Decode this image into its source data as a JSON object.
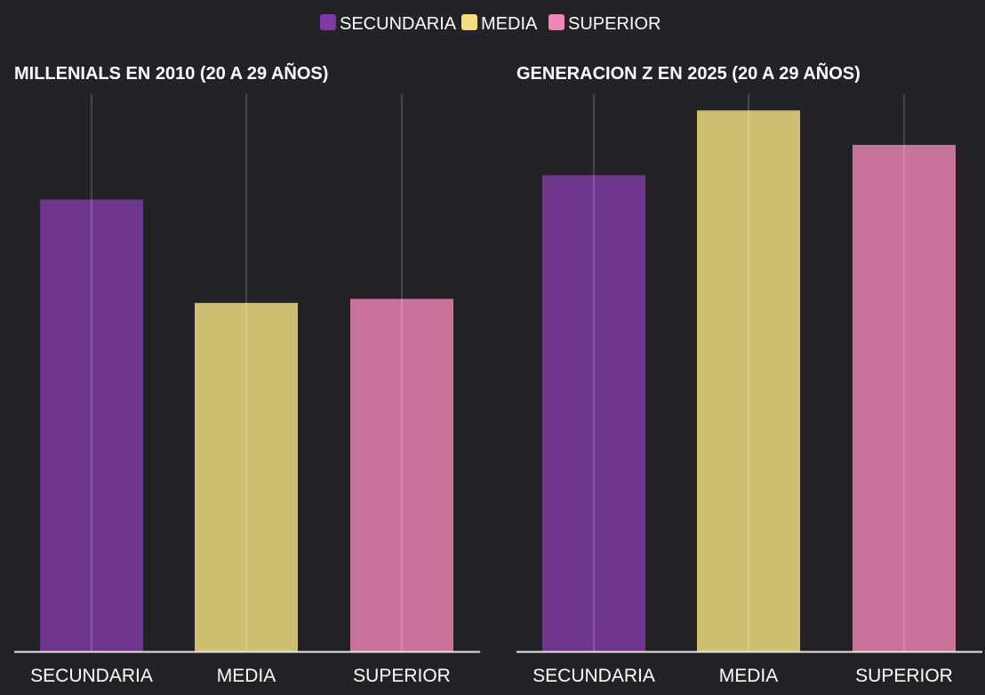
{
  "legend": {
    "placement": "top-center",
    "items": [
      {
        "label": "SECUNDARIA",
        "color": "#7b3aa6"
      },
      {
        "label": "MEDIA",
        "color": "#f5dd7e"
      },
      {
        "label": "SUPERIOR",
        "color": "#ee86b6"
      }
    ]
  },
  "chart_data": [
    {
      "type": "bar",
      "title": "MILLENIALS EN 2010 (20 A 29 AÑOS)",
      "xlabel": "",
      "ylabel": "",
      "categories": [
        "SECUNDARIA",
        "MEDIA",
        "SUPERIOR"
      ],
      "values": [
        22.3,
        17.2,
        17.4
      ],
      "colors": [
        "#6f368e",
        "#cdbf71",
        "#c9729a"
      ],
      "ylim": [
        0,
        27.5
      ],
      "grid": "vertical lines at categories",
      "y_axis_labels": false
    },
    {
      "type": "bar",
      "title": "GENERACION Z EN 2025 (20 A 29 AÑOS)",
      "xlabel": "",
      "ylabel": "",
      "categories": [
        "SECUNDARIA",
        "MEDIA",
        "SUPERIOR"
      ],
      "values": [
        23.5,
        26.7,
        25.0
      ],
      "colors": [
        "#6f368e",
        "#cdbf71",
        "#c9729a"
      ],
      "ylim": [
        0,
        27.5
      ],
      "grid": "vertical lines at categories",
      "y_axis_labels": false
    }
  ]
}
